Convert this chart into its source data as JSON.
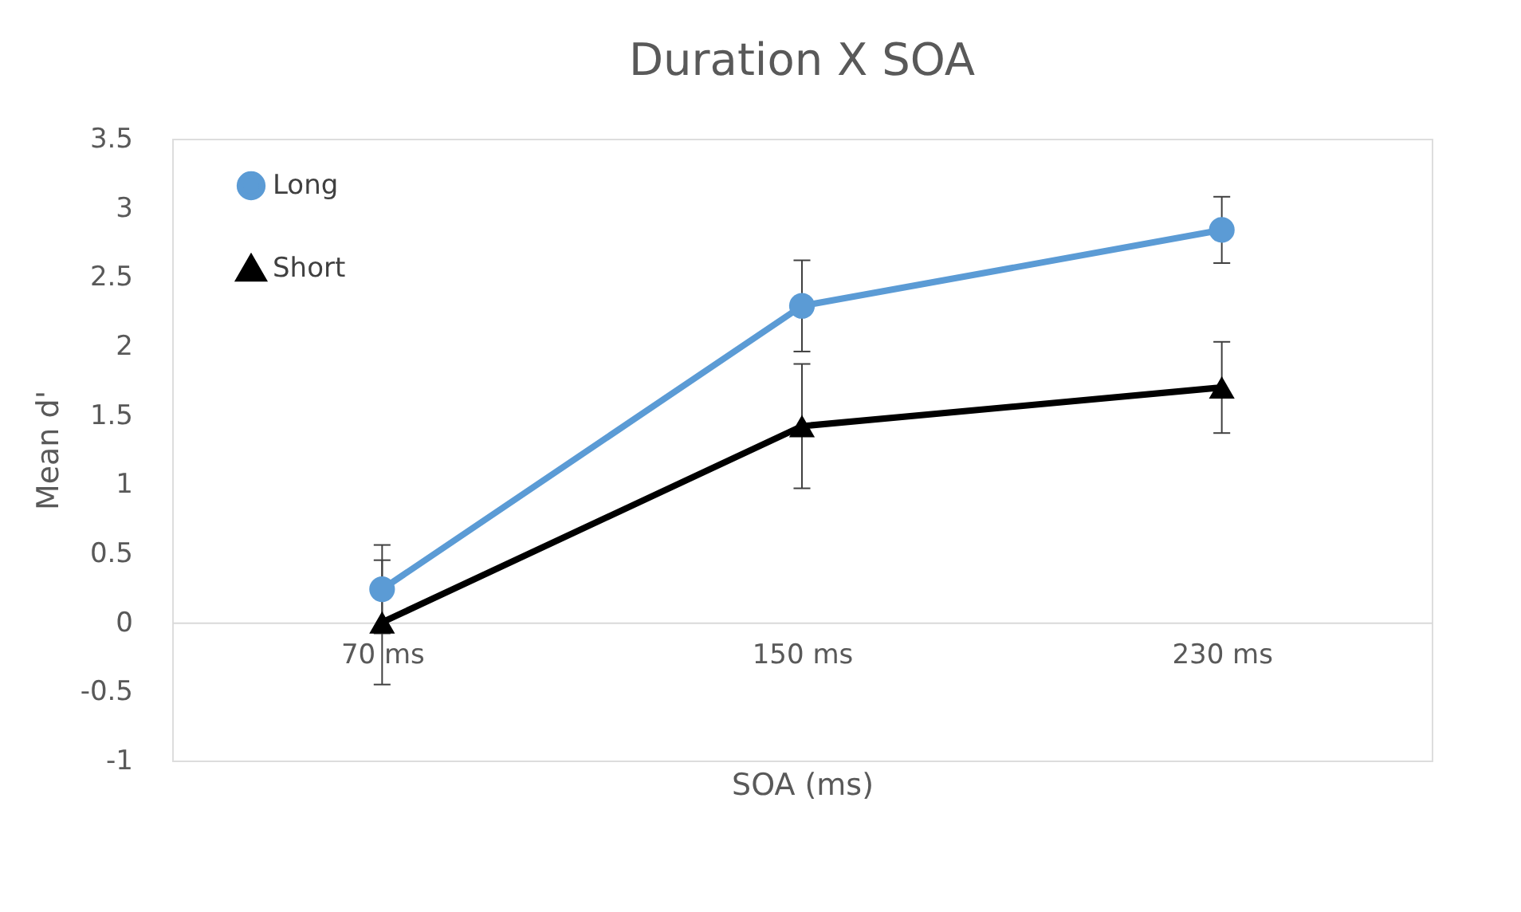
{
  "chart_data": {
    "type": "line",
    "title": "Duration X SOA",
    "xlabel": "SOA (ms)",
    "ylabel": "Mean d'",
    "categories": [
      "70 ms",
      "150 ms",
      "230 ms"
    ],
    "series": [
      {
        "name": "Long",
        "color": "#5b9bd5",
        "marker": "circle",
        "values": [
          0.24,
          2.29,
          2.84
        ],
        "errors": [
          0.32,
          0.33,
          0.24
        ]
      },
      {
        "name": "Short",
        "color": "#000000",
        "marker": "triangle",
        "values": [
          0.0,
          1.42,
          1.7
        ],
        "errors": [
          0.45,
          0.45,
          0.33
        ]
      }
    ],
    "ylim": [
      -1,
      3.5
    ],
    "yticks": [
      -1,
      -0.5,
      0,
      0.5,
      1,
      1.5,
      2,
      2.5,
      3,
      3.5
    ],
    "grid": false,
    "legend": "top left",
    "line_style": "solid"
  }
}
